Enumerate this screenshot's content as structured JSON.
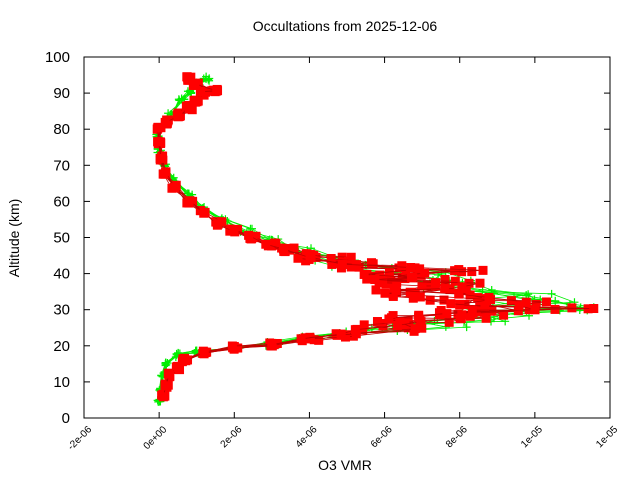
{
  "chart_data": {
    "type": "scatter",
    "title": "Occultations from 2025-12-06",
    "xlabel": "O3 VMR",
    "ylabel": "Altitude (km)",
    "xlim": [
      -2e-06,
      1.2e-05
    ],
    "ylim": [
      0,
      100
    ],
    "grid": false,
    "legend": "none",
    "x_ticks": [
      {
        "value": -2e-06,
        "label": "-2e-06"
      },
      {
        "value": 0,
        "label": "0e+00"
      },
      {
        "value": 2e-06,
        "label": "2e-06"
      },
      {
        "value": 4e-06,
        "label": "4e-06"
      },
      {
        "value": 6e-06,
        "label": "6e-06"
      },
      {
        "value": 8e-06,
        "label": "8e-06"
      },
      {
        "value": 1e-05,
        "label": "1e-05"
      },
      {
        "value": 1.2e-05,
        "label": "1e-05"
      }
    ],
    "y_ticks": [
      {
        "value": 0,
        "label": "0"
      },
      {
        "value": 10,
        "label": "10"
      },
      {
        "value": 20,
        "label": "20"
      },
      {
        "value": 30,
        "label": "30"
      },
      {
        "value": 40,
        "label": "40"
      },
      {
        "value": 50,
        "label": "50"
      },
      {
        "value": 60,
        "label": "60"
      },
      {
        "value": 70,
        "label": "70"
      },
      {
        "value": 80,
        "label": "80"
      },
      {
        "value": 90,
        "label": "90"
      },
      {
        "value": 100,
        "label": "100"
      }
    ],
    "series": [
      {
        "name": "green-plus-profiles",
        "marker": "plus",
        "color": "#00ee00",
        "points": [
          [
            0.0,
            5
          ],
          [
            5e-08,
            8
          ],
          [
            1e-07,
            12
          ],
          [
            2e-07,
            15
          ],
          [
            5e-07,
            17.5
          ],
          [
            1e-06,
            18.5
          ],
          [
            2e-06,
            19.5
          ],
          [
            3e-06,
            20.5
          ],
          [
            4e-06,
            22
          ],
          [
            5e-06,
            23.5
          ],
          [
            6e-06,
            24.5
          ],
          [
            7e-06,
            25.5
          ],
          [
            8e-06,
            27
          ],
          [
            9e-06,
            28.5
          ],
          [
            9.8e-06,
            30
          ],
          [
            1.02e-05,
            31
          ],
          [
            9.8e-06,
            32.5
          ],
          [
            9e-06,
            34
          ],
          [
            8.3e-06,
            36
          ],
          [
            7.5e-06,
            38
          ],
          [
            6.5e-06,
            40
          ],
          [
            5.5e-06,
            42
          ],
          [
            4.6e-06,
            44
          ],
          [
            3.8e-06,
            46.5
          ],
          [
            3e-06,
            49
          ],
          [
            2.3e-06,
            52
          ],
          [
            1.7e-06,
            55
          ],
          [
            1.2e-06,
            58
          ],
          [
            8e-07,
            62
          ],
          [
            4e-07,
            66
          ],
          [
            1.5e-07,
            70
          ],
          [
            0.0,
            74
          ],
          [
            -5e-08,
            78
          ],
          [
            0.0,
            80
          ],
          [
            3e-07,
            84
          ],
          [
            6e-07,
            88
          ],
          [
            8e-07,
            90.5
          ],
          [
            1e-06,
            93
          ],
          [
            1.3e-06,
            94
          ]
        ]
      },
      {
        "name": "red-square-profiles",
        "marker": "square",
        "color": "#ff0000",
        "points": [
          [
            1e-07,
            6
          ],
          [
            2e-07,
            9
          ],
          [
            3e-07,
            12
          ],
          [
            5e-07,
            14
          ],
          [
            7e-07,
            16
          ],
          [
            1.2e-06,
            18
          ],
          [
            2e-06,
            19.5
          ],
          [
            3e-06,
            20.5
          ],
          [
            4e-06,
            22
          ],
          [
            5e-06,
            23
          ],
          [
            6e-06,
            24.5
          ],
          [
            6.5e-06,
            26
          ],
          [
            7e-06,
            27
          ],
          [
            7.5e-06,
            28
          ],
          [
            8e-06,
            29
          ],
          [
            9e-06,
            29.5
          ],
          [
            1e-05,
            30
          ],
          [
            9.5e-06,
            31
          ],
          [
            8.8e-06,
            32
          ],
          [
            8e-06,
            33
          ],
          [
            7.2e-06,
            34
          ],
          [
            6.7e-06,
            35
          ],
          [
            7e-06,
            36
          ],
          [
            7.3e-06,
            37
          ],
          [
            6.8e-06,
            38
          ],
          [
            6.2e-06,
            39
          ],
          [
            6.6e-06,
            40
          ],
          [
            7.6e-06,
            41
          ],
          [
            5.8e-06,
            42
          ],
          [
            5e-06,
            43
          ],
          [
            4.5e-06,
            44
          ],
          [
            4e-06,
            45
          ],
          [
            3.5e-06,
            46.5
          ],
          [
            3e-06,
            48
          ],
          [
            2.5e-06,
            50
          ],
          [
            2e-06,
            52
          ],
          [
            1.6e-06,
            54
          ],
          [
            1.2e-06,
            57
          ],
          [
            8e-07,
            60
          ],
          [
            4e-07,
            64
          ],
          [
            1.5e-07,
            68
          ],
          [
            5e-08,
            72
          ],
          [
            0.0,
            76
          ],
          [
            0.0,
            80
          ],
          [
            2e-07,
            82
          ],
          [
            5e-07,
            84
          ],
          [
            8e-07,
            86
          ],
          [
            1e-06,
            88
          ],
          [
            1.2e-06,
            90
          ],
          [
            1.5e-06,
            91
          ],
          [
            1e-06,
            92.5
          ],
          [
            8e-07,
            94
          ]
        ]
      }
    ]
  }
}
